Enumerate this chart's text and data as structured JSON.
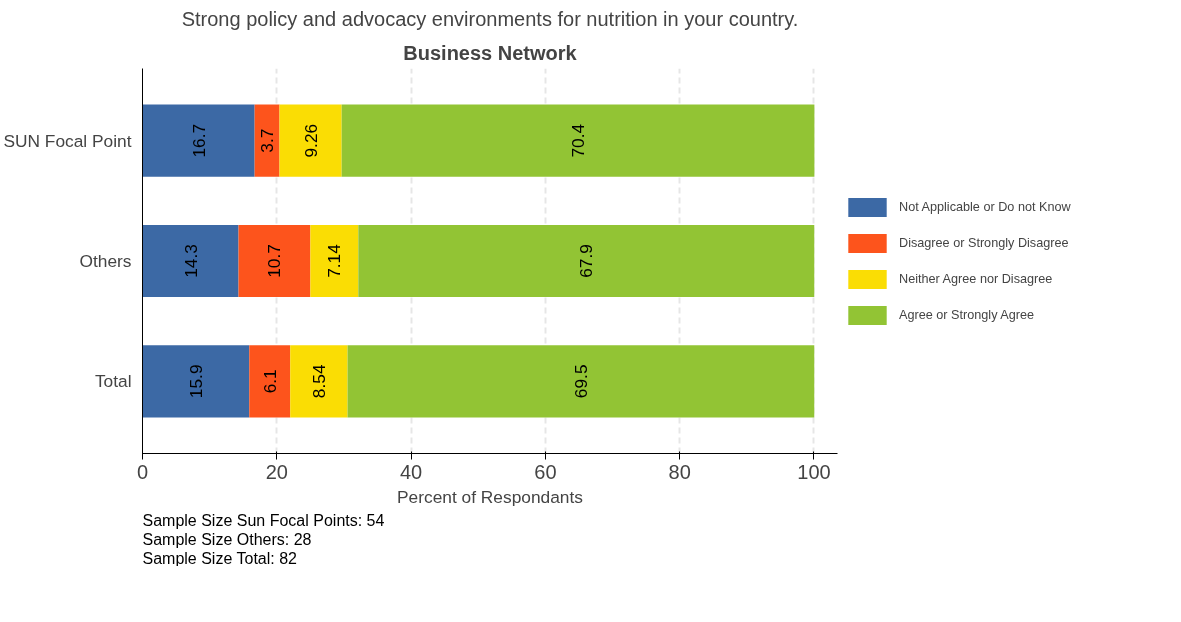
{
  "chart_data": {
    "type": "bar",
    "orientation": "horizontal",
    "stacked": true,
    "title": "Strong policy and advocacy environments for nutrition in your country.",
    "subtitle": "Business Network",
    "xlabel": "Percent of Respondants",
    "categories": [
      "SUN Focal Point",
      "Others",
      "Total"
    ],
    "series": [
      {
        "name": "Not Applicable or Do not Know",
        "color": "#3c69a5",
        "values": [
          16.7,
          14.3,
          15.9
        ]
      },
      {
        "name": "Disagree or Strongly Disagree",
        "color": "#fd541c",
        "values": [
          3.7,
          10.7,
          6.1
        ]
      },
      {
        "name": "Neither Agree nor Disagree",
        "color": "#fadd04",
        "values": [
          9.26,
          7.14,
          8.54
        ]
      },
      {
        "name": "Agree or Strongly Agree",
        "color": "#92c434",
        "values": [
          70.4,
          67.9,
          69.5
        ]
      }
    ],
    "xlim": [
      0,
      103.5
    ],
    "xticks": [
      0,
      20,
      40,
      60,
      80,
      100
    ],
    "grid": "x",
    "legend": "right",
    "data_labels": true,
    "annotations": [
      "Sample Size Sun Focal Points: 54",
      "Sample Size Others: 28",
      "Sample Size Total: 82"
    ]
  }
}
